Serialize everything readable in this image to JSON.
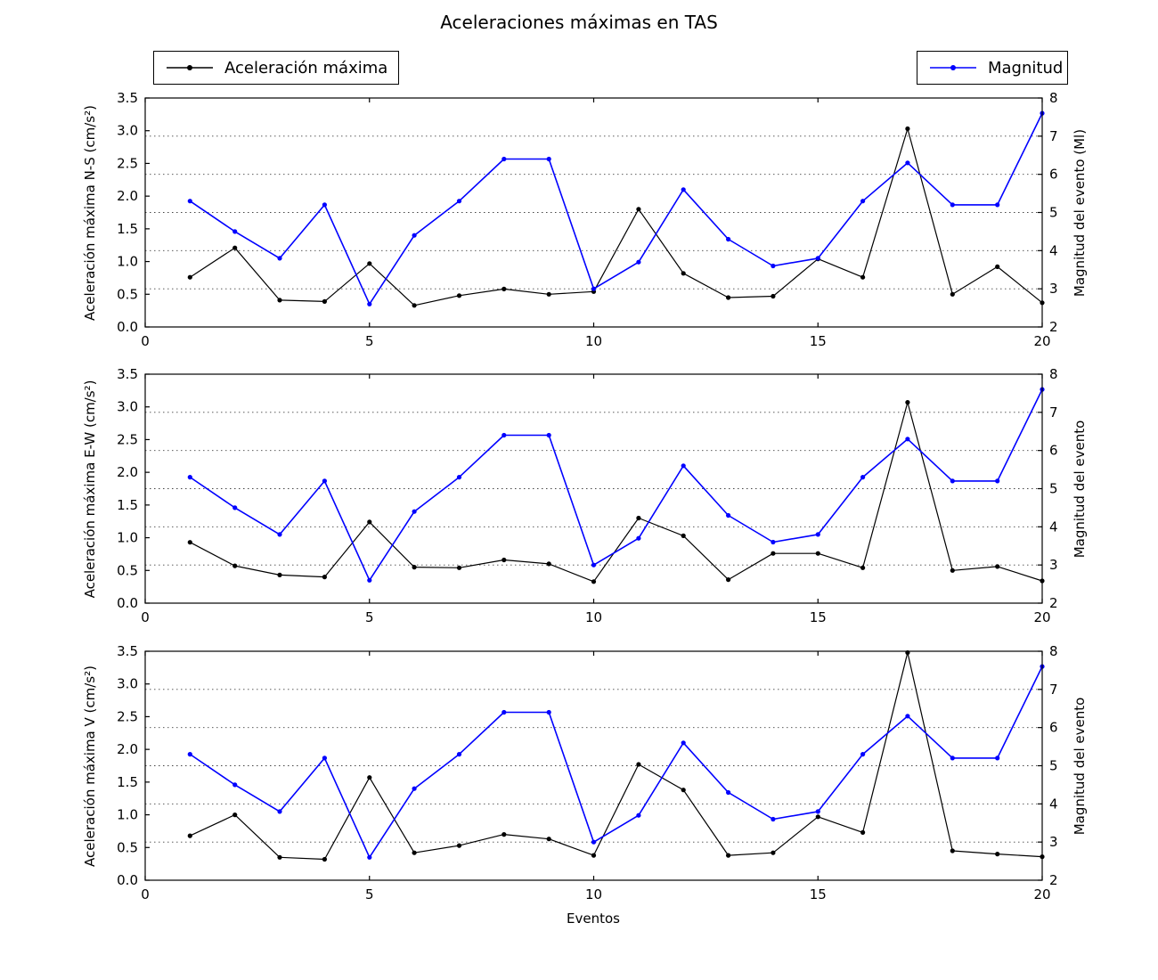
{
  "title": "Aceleraciones máximas en TAS",
  "legend": {
    "acceleration_label": "Aceleración máxima",
    "magnitude_label": "Magnitud"
  },
  "xlabel": "Eventos",
  "colors": {
    "acceleration": "#000000",
    "magnitude": "#0000ff",
    "grid": "#444444",
    "axis": "#000000",
    "background": "#ffffff"
  },
  "chart_data": [
    {
      "type": "line",
      "subplot": "N-S",
      "ylabel_left": "Aceleración máxima N-S (cm/s²)",
      "ylabel_right": "Magnitud del evento (Ml)",
      "xlim": [
        0,
        20
      ],
      "x_ticks": [
        "0",
        "5",
        "10",
        "15",
        "20"
      ],
      "left_lim": [
        0,
        3.5
      ],
      "left_ticks": [
        "0.0",
        "0.5",
        "1.0",
        "1.5",
        "2.0",
        "2.5",
        "3.0",
        "3.5"
      ],
      "right_lim": [
        2,
        8
      ],
      "right_ticks": [
        "2",
        "3",
        "4",
        "5",
        "6",
        "7",
        "8"
      ],
      "grid_right_values": [
        3,
        4,
        5,
        6,
        7
      ],
      "x": [
        1,
        2,
        3,
        4,
        5,
        6,
        7,
        8,
        9,
        10,
        11,
        12,
        13,
        14,
        15,
        16,
        17,
        18,
        19,
        20
      ],
      "series": [
        {
          "name": "Aceleración máxima",
          "axis": "left",
          "color": "#000000",
          "values": [
            0.76,
            1.21,
            0.41,
            0.39,
            0.97,
            0.33,
            0.48,
            0.58,
            0.5,
            0.54,
            1.8,
            0.82,
            0.45,
            0.47,
            1.04,
            0.76,
            3.03,
            0.5,
            0.92,
            0.37
          ]
        },
        {
          "name": "Magnitud",
          "axis": "right",
          "color": "#0000ff",
          "values": [
            5.3,
            4.5,
            3.8,
            5.2,
            2.6,
            4.4,
            5.3,
            6.4,
            6.4,
            3.0,
            3.7,
            5.6,
            4.3,
            3.6,
            3.8,
            5.3,
            6.3,
            5.2,
            5.2,
            7.6
          ]
        }
      ]
    },
    {
      "type": "line",
      "subplot": "E-W",
      "ylabel_left": "Aceleración máxima E-W (cm/s²)",
      "ylabel_right": "Magnitud del evento",
      "xlim": [
        0,
        20
      ],
      "x_ticks": [
        "0",
        "5",
        "10",
        "15",
        "20"
      ],
      "left_lim": [
        0,
        3.5
      ],
      "left_ticks": [
        "0.0",
        "0.5",
        "1.0",
        "1.5",
        "2.0",
        "2.5",
        "3.0",
        "3.5"
      ],
      "right_lim": [
        2,
        8
      ],
      "right_ticks": [
        "2",
        "3",
        "4",
        "5",
        "6",
        "7",
        "8"
      ],
      "grid_right_values": [
        3,
        4,
        5,
        6,
        7
      ],
      "x": [
        1,
        2,
        3,
        4,
        5,
        6,
        7,
        8,
        9,
        10,
        11,
        12,
        13,
        14,
        15,
        16,
        17,
        18,
        19,
        20
      ],
      "series": [
        {
          "name": "Aceleración máxima",
          "axis": "left",
          "color": "#000000",
          "values": [
            0.93,
            0.57,
            0.43,
            0.4,
            1.24,
            0.55,
            0.54,
            0.66,
            0.6,
            0.33,
            1.3,
            1.03,
            0.36,
            0.76,
            0.76,
            0.54,
            3.07,
            0.5,
            0.56,
            0.34
          ]
        },
        {
          "name": "Magnitud",
          "axis": "right",
          "color": "#0000ff",
          "values": [
            5.3,
            4.5,
            3.8,
            5.2,
            2.6,
            4.4,
            5.3,
            6.4,
            6.4,
            3.0,
            3.7,
            5.6,
            4.3,
            3.6,
            3.8,
            5.3,
            6.3,
            5.2,
            5.2,
            7.6
          ]
        }
      ]
    },
    {
      "type": "line",
      "subplot": "V",
      "ylabel_left": "Aceleración máxima V (cm/s²)",
      "ylabel_right": "Magnitud del evento",
      "xlim": [
        0,
        20
      ],
      "x_ticks": [
        "0",
        "5",
        "10",
        "15",
        "20"
      ],
      "left_lim": [
        0,
        3.5
      ],
      "left_ticks": [
        "0.0",
        "0.5",
        "1.0",
        "1.5",
        "2.0",
        "2.5",
        "3.0",
        "3.5"
      ],
      "right_lim": [
        2,
        8
      ],
      "right_ticks": [
        "2",
        "3",
        "4",
        "5",
        "6",
        "7",
        "8"
      ],
      "grid_right_values": [
        3,
        4,
        5,
        6,
        7
      ],
      "x": [
        1,
        2,
        3,
        4,
        5,
        6,
        7,
        8,
        9,
        10,
        11,
        12,
        13,
        14,
        15,
        16,
        17,
        18,
        19,
        20
      ],
      "series": [
        {
          "name": "Aceleración máxima",
          "axis": "left",
          "color": "#000000",
          "values": [
            0.68,
            1.0,
            0.35,
            0.32,
            1.57,
            0.42,
            0.53,
            0.7,
            0.63,
            0.38,
            1.77,
            1.38,
            0.38,
            0.42,
            0.97,
            0.73,
            3.48,
            0.45,
            0.4,
            0.36
          ]
        },
        {
          "name": "Magnitud",
          "axis": "right",
          "color": "#0000ff",
          "values": [
            5.3,
            4.5,
            3.8,
            5.2,
            2.6,
            4.4,
            5.3,
            6.4,
            6.4,
            3.0,
            3.7,
            5.6,
            4.3,
            3.6,
            3.8,
            5.3,
            6.3,
            5.2,
            5.2,
            7.6
          ]
        }
      ]
    }
  ]
}
